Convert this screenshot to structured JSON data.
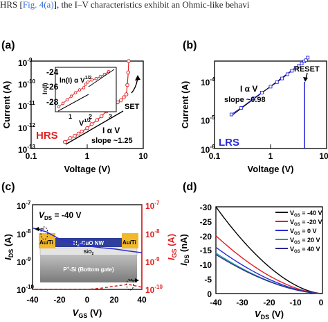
{
  "topline": {
    "pre": "HRS [",
    "link": "Fig. 4(a)",
    "post": "], the I–V characteristics exhibit an Ohmic-like behavi"
  },
  "panels": {
    "a": {
      "label": "(a)",
      "xlabel": "Voltage (V)",
      "ylabel": "Current (A)",
      "xticks": [
        "0.1",
        "1",
        "10"
      ],
      "yticks": [
        "10",
        "10",
        "10",
        "10",
        "10"
      ],
      "yexp": [
        "-9",
        "-10",
        "-11",
        "-12",
        "-13"
      ],
      "state": "HRS",
      "ohm_text": "I α V",
      "slope_text": "slope ~1.25",
      "set_text": "SET",
      "inset": {
        "ylabel": "ln(I)",
        "formula": "ln(I) α V",
        "formula_exp": "1/2",
        "xlabel": "V",
        "xlabel_exp": "1/2",
        "xticks": [
          "1",
          "2",
          "3"
        ],
        "yticks": [
          "-24",
          "-26",
          "-28"
        ]
      }
    },
    "b": {
      "label": "(b)",
      "xlabel": "Voltage (V)",
      "ylabel": "Current (A)",
      "xticks": [
        "0.1",
        "1",
        "10"
      ],
      "yticks": [
        "10",
        "10",
        "10"
      ],
      "yexp": [
        "-4",
        "-5",
        "-6"
      ],
      "state": "LRS",
      "ohm_text": "I α V",
      "slope_text": "slope ~0.98",
      "reset_text": "RESET"
    },
    "c": {
      "label": "(c)",
      "xlabel": "V",
      "xlabel_sub": "GS",
      "xlabel_unit": " (V)",
      "ylabel": "I",
      "ylabel_sub": "DS",
      "ylabel_unit": " (A)",
      "y2label": "I",
      "y2label_sub": "GS",
      "y2label_unit": " (A)",
      "vds": "V",
      "vds_sub": "DS",
      "vds_val": " = -40 V",
      "xticks": [
        "-40",
        "-20",
        "0",
        "20",
        "40"
      ],
      "yticks": [
        "10",
        "10",
        "10",
        "10"
      ],
      "yexp": [
        "-7",
        "-8",
        "-9",
        "-10"
      ],
      "y2ticks": [
        "10",
        "10",
        "10",
        "10"
      ],
      "y2exp": [
        "-7",
        "-8",
        "-9",
        "-10"
      ],
      "device": {
        "au_ti_left": "Au/Ti",
        "au_ti_right": "Au/Ti",
        "nw": "H",
        "nw_sub": "2",
        "nw_rest": "-CuO NW",
        "sio": "SiO",
        "sio_sub": "2",
        "psi": "P",
        "psi_sup": "+",
        "psi_rest": "-Si (Bottom gate)"
      }
    },
    "d": {
      "label": "(d)",
      "xlabel": "V",
      "xlabel_sub": "DS",
      "xlabel_unit": " (V)",
      "ylabel": "I",
      "ylabel_sub": "DS",
      "ylabel_unit": " (nA)",
      "xticks": [
        "-40",
        "-30",
        "-20",
        "-10",
        "0"
      ],
      "yticks": [
        "-30",
        "-25",
        "-20",
        "-15",
        "-10",
        "-5",
        "0"
      ],
      "legend": [
        {
          "v": "V",
          "sub": "GS",
          "val": " = -40 V",
          "color": "#000000"
        },
        {
          "v": "V",
          "sub": "GS",
          "val": " = -20 V",
          "color": "#e02020"
        },
        {
          "v": "V",
          "sub": "GS",
          "val": " = 0 V",
          "color": "#2a2ad8"
        },
        {
          "v": "V",
          "sub": "GS",
          "val": " = 20 V",
          "color": "#1aa098"
        },
        {
          "v": "V",
          "sub": "GS",
          "val": " = 40 V",
          "color": "#2b2b8f"
        }
      ]
    }
  },
  "chart_data": [
    {
      "panel": "a",
      "type": "scatter",
      "xscale": "log",
      "yscale": "log",
      "xlim": [
        0.1,
        10
      ],
      "ylim": [
        1e-13,
        1e-09
      ],
      "series": [
        {
          "values_x": [
            0.4,
            0.5,
            0.6,
            0.7,
            0.8,
            1.0,
            1.2,
            1.5,
            1.8,
            2.2,
            2.6,
            3.0,
            3.5,
            4.0,
            4.5,
            5.0,
            5.2,
            5.4,
            5.5
          ],
          "values_y": [
            2e-13,
            3e-13,
            3.8e-13,
            4.8e-13,
            6e-13,
            8.5e-13,
            1.3e-12,
            2e-12,
            3e-12,
            5e-12,
            7e-12,
            1e-11,
            1.3e-11,
            1.6e-11,
            2.2e-11,
            3e-11,
            8e-11,
            3e-10,
            1e-09
          ],
          "color": "#e02020"
        }
      ]
    },
    {
      "panel": "b",
      "type": "line",
      "xscale": "log",
      "yscale": "log",
      "xlim": [
        0.1,
        10
      ],
      "ylim": [
        1e-06,
        0.0001
      ],
      "series": [
        {
          "values_x": [
            0.2,
            0.3,
            0.5,
            0.7,
            1.0,
            1.3,
            1.6,
            2.0,
            2.4,
            2.8,
            3.2,
            3.6,
            4.0,
            4.3,
            4.6
          ],
          "values_y": [
            6e-06,
            8.5e-06,
            1.4e-05,
            1.9e-05,
            2.6e-05,
            3.3e-05,
            4e-05,
            5e-05,
            6e-05,
            7e-05,
            7.8e-05,
            8.8e-05,
            9.8e-05,
            0.000105,
            0.00012
          ],
          "color": "#2a2ad8"
        }
      ]
    },
    {
      "panel": "c",
      "type": "line",
      "xlim": [
        -40,
        40
      ],
      "yscale": "log",
      "ylim": [
        1e-10,
        1e-07
      ],
      "series": [
        {
          "axis": "left",
          "x": [
            -40,
            -30,
            -20,
            -10,
            0,
            10,
            20,
            30,
            40
          ],
          "values_y": [
            1.5e-08,
            1.1e-08,
            6e-09,
            4.5e-09,
            3.5e-09,
            3e-09,
            2.7e-09,
            2.3e-09,
            2e-09
          ],
          "color": "#2a2ad8"
        },
        {
          "axis": "right",
          "x": [
            -40,
            -30,
            -20,
            -10,
            0,
            10,
            20,
            30,
            40
          ],
          "values_y": [
            1e-10,
            1e-10,
            1e-10,
            1e-10,
            1e-10,
            1.1e-10,
            1.3e-10,
            1.5e-10,
            1.2e-10
          ],
          "color": "#e02020"
        }
      ]
    },
    {
      "panel": "d",
      "type": "line",
      "xlim": [
        -40,
        0
      ],
      "ylim": [
        -30,
        0
      ],
      "series": [
        {
          "color": "#000000",
          "x": [
            -40,
            -30,
            -20,
            -10,
            0
          ],
          "values_y": [
            -30,
            -18,
            -9,
            -3,
            0
          ]
        },
        {
          "color": "#e02020",
          "x": [
            -40,
            -30,
            -20,
            -10,
            0
          ],
          "values_y": [
            -20,
            -12,
            -6.5,
            -2.5,
            0
          ]
        },
        {
          "color": "#2a2ad8",
          "x": [
            -40,
            -30,
            -20,
            -10,
            0
          ],
          "values_y": [
            -16,
            -10,
            -5.5,
            -2,
            0
          ]
        },
        {
          "color": "#1aa098",
          "x": [
            -40,
            -30,
            -20,
            -10,
            0
          ],
          "values_y": [
            -14,
            -9,
            -5,
            -2,
            0
          ]
        },
        {
          "color": "#2b2b8f",
          "x": [
            -40,
            -30,
            -20,
            -10,
            0
          ],
          "values_y": [
            -13.5,
            -8.5,
            -4.8,
            -1.8,
            0
          ]
        }
      ]
    }
  ]
}
